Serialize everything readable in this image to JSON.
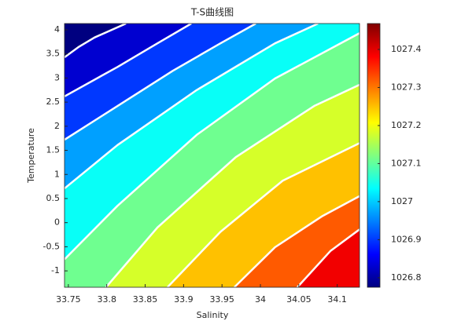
{
  "chart_data": {
    "type": "contourf",
    "title": "T-S曲线图",
    "xlabel": "Salinity",
    "ylabel": "Temperature",
    "xlim": [
      33.745,
      34.129
    ],
    "ylim": [
      -1.34,
      4.13
    ],
    "xticks": [
      33.75,
      33.8,
      33.85,
      33.9,
      33.95,
      34,
      34.05,
      34.1
    ],
    "yticks": [
      -1,
      -0.5,
      0,
      0.5,
      1,
      1.5,
      2,
      2.5,
      3,
      3.5,
      4
    ],
    "colormap": "jet",
    "clim": [
      1026.775,
      1027.468
    ],
    "cticks": [
      1026.8,
      1026.9,
      1027,
      1027.1,
      1027.2,
      1027.3,
      1027.4
    ],
    "line_color": "#ffffff",
    "contours": [
      {
        "level": 1026.83,
        "x": [
          33.745,
          33.763,
          33.784,
          33.825
        ],
        "y": [
          3.43,
          3.64,
          3.84,
          4.13
        ]
      },
      {
        "level": 1026.9,
        "x": [
          33.745,
          33.814,
          33.866,
          33.91
        ],
        "y": [
          2.62,
          3.23,
          3.72,
          4.13
        ]
      },
      {
        "level": 1026.97,
        "x": [
          33.745,
          33.814,
          33.886,
          33.948,
          33.994
        ],
        "y": [
          1.72,
          2.42,
          3.15,
          3.72,
          4.13
        ]
      },
      {
        "level": 1027.04,
        "x": [
          33.745,
          33.814,
          33.917,
          34.019,
          34.075
        ],
        "y": [
          0.71,
          1.61,
          2.75,
          3.72,
          4.13
        ]
      },
      {
        "level": 1027.11,
        "x": [
          33.745,
          33.814,
          33.917,
          34.019,
          34.129
        ],
        "y": [
          -0.76,
          0.35,
          1.82,
          2.99,
          3.93
        ]
      },
      {
        "level": 1027.18,
        "x": [
          33.799,
          33.866,
          33.968,
          34.07,
          34.129
        ],
        "y": [
          -1.34,
          -0.1,
          1.36,
          2.42,
          2.86
        ]
      },
      {
        "level": 1027.25,
        "x": [
          33.879,
          33.948,
          34.029,
          34.129
        ],
        "y": [
          -1.34,
          -0.19,
          0.87,
          1.65
        ]
      },
      {
        "level": 1027.32,
        "x": [
          33.966,
          34.019,
          34.081,
          34.129
        ],
        "y": [
          -1.34,
          -0.51,
          0.14,
          0.55
        ]
      },
      {
        "level": 1027.39,
        "x": [
          34.048,
          34.091,
          34.129
        ],
        "y": [
          -1.34,
          -0.59,
          -0.14
        ]
      }
    ]
  }
}
